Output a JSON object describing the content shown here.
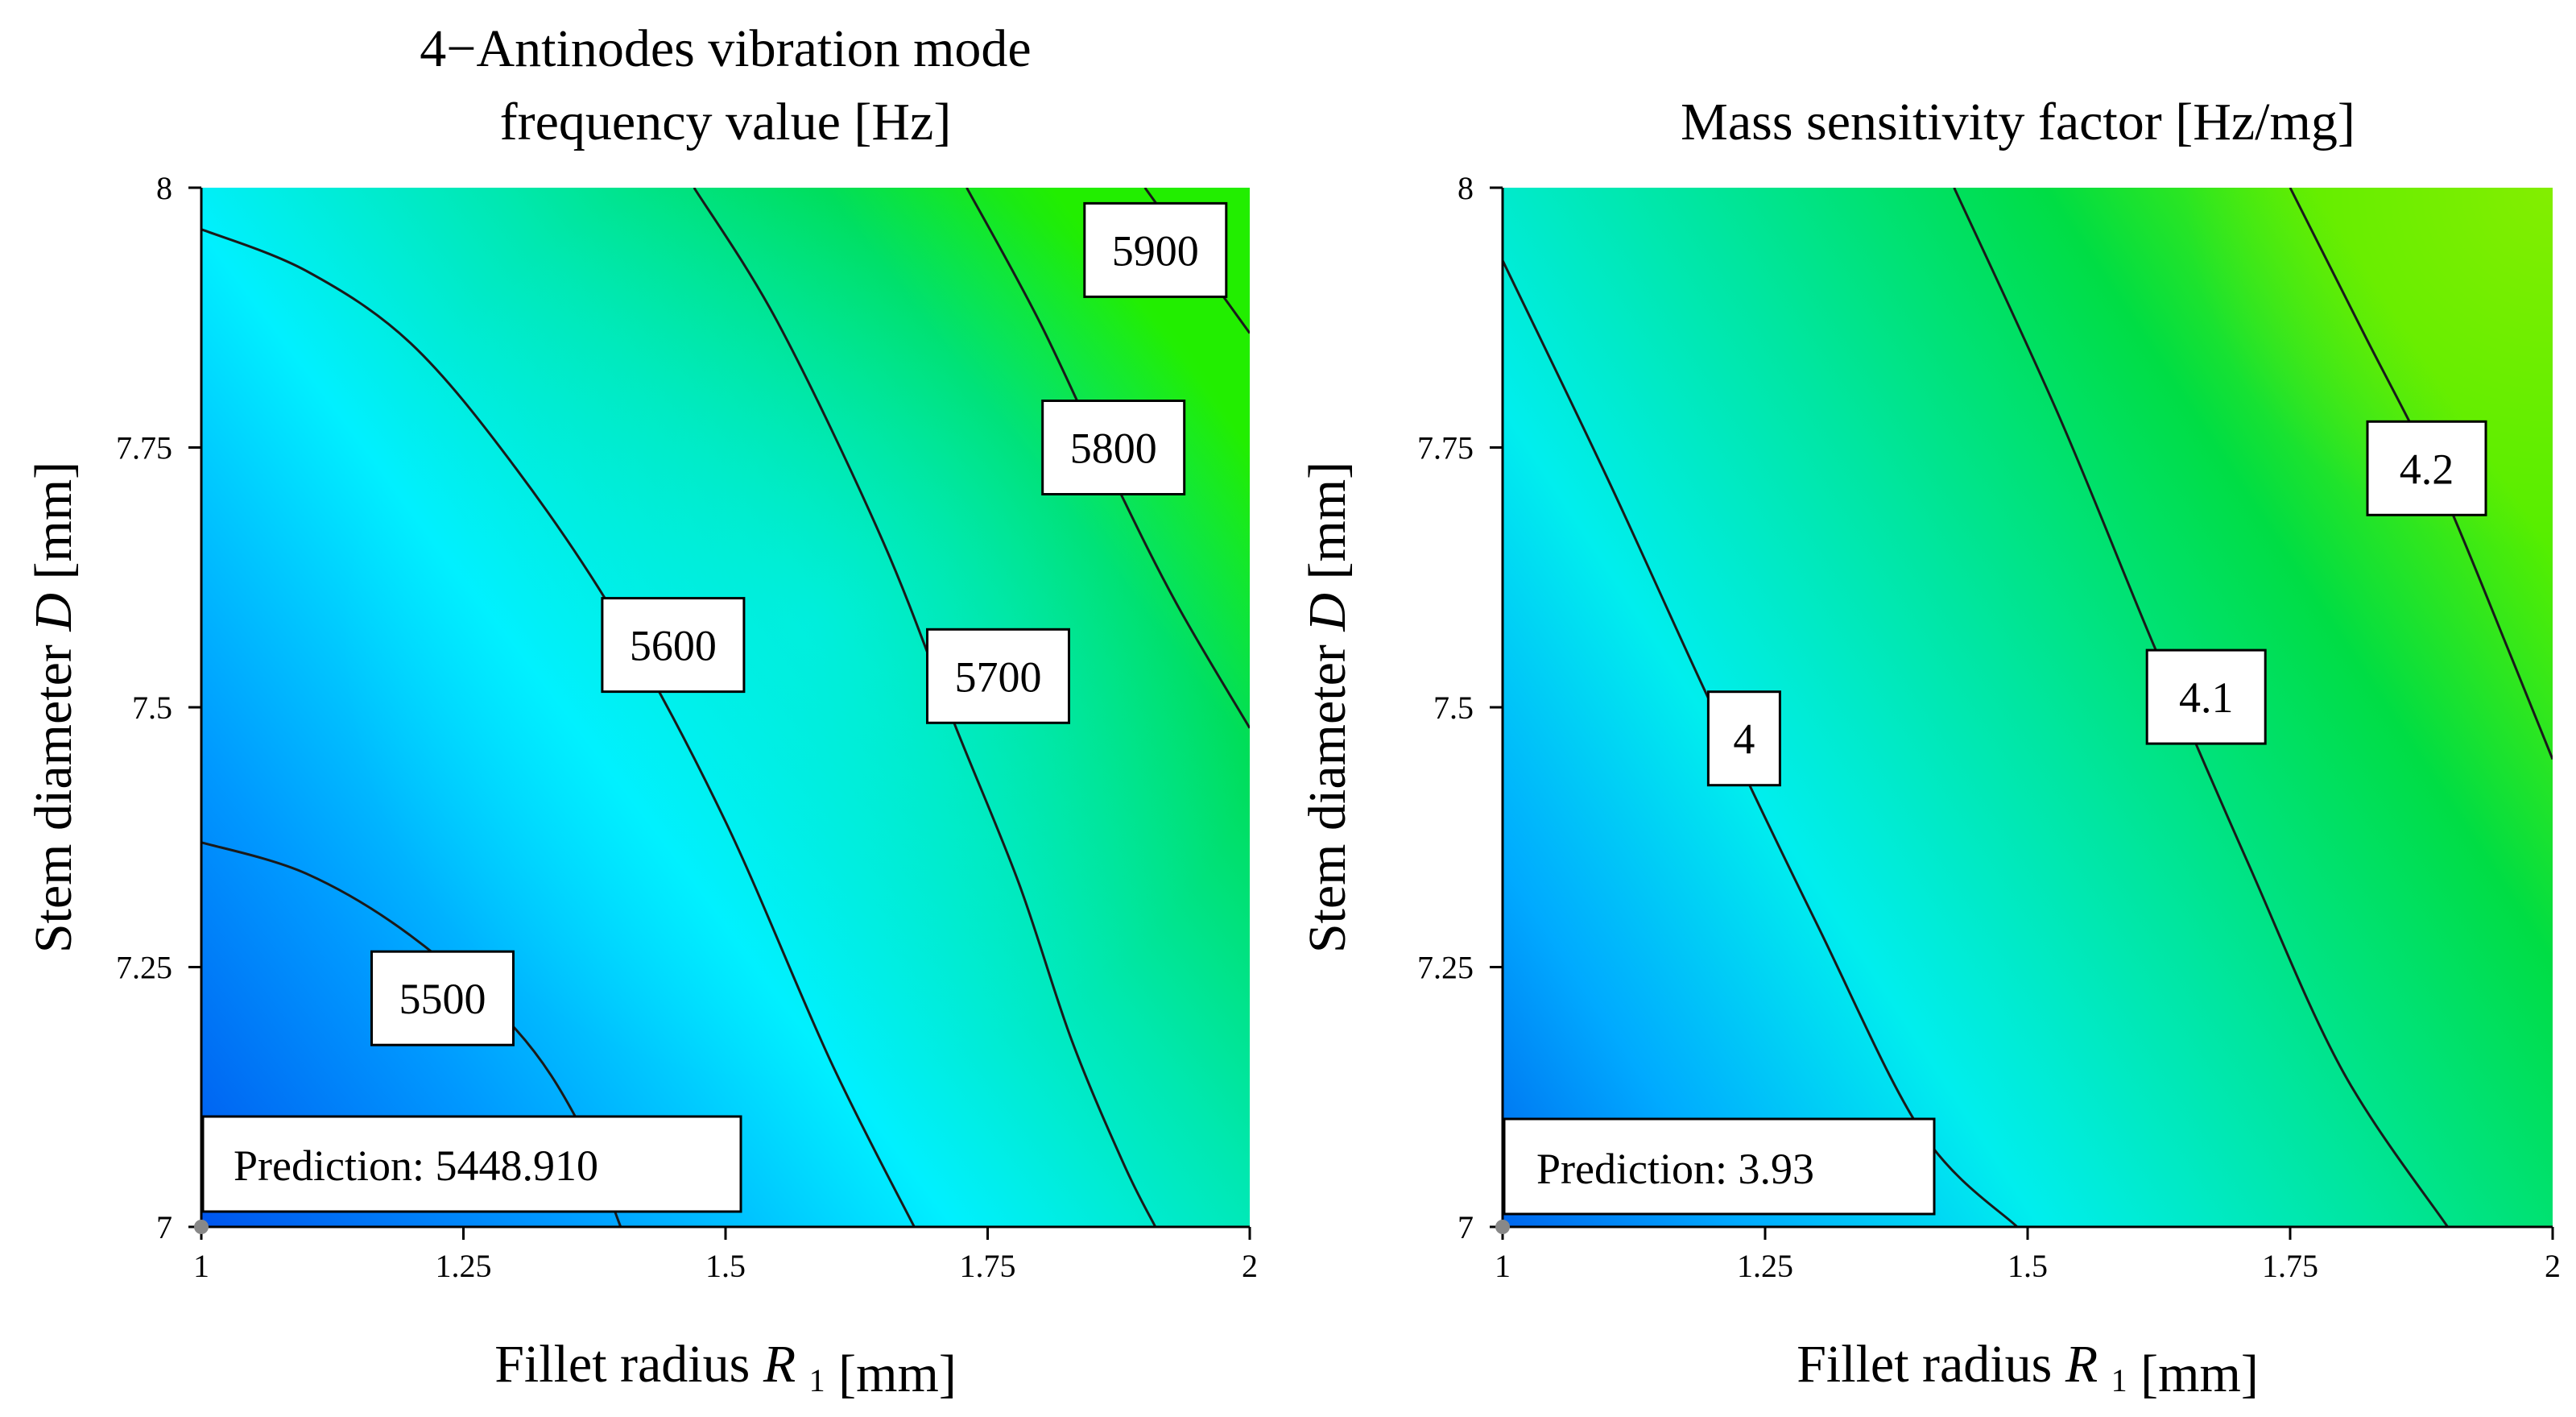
{
  "chart_data": [
    {
      "type": "contour",
      "title_lines": [
        "4−Antinodes vibration mode",
        "frequency value [Hz]"
      ],
      "xlabel": "Fillet radius",
      "xlabel_symbol": "R",
      "xlabel_subscript": "1",
      "xlabel_unit": "[mm]",
      "ylabel": "Stem diameter",
      "ylabel_symbol": "D",
      "ylabel_unit": "[mm]",
      "xlim": [
        1,
        2
      ],
      "ylim": [
        7,
        8
      ],
      "xticks": [
        1,
        1.25,
        1.5,
        1.75,
        2
      ],
      "xtick_labels": [
        "1",
        "1.25",
        "1.5",
        "1.75",
        "2"
      ],
      "yticks": [
        7,
        7.25,
        7.5,
        7.75,
        8
      ],
      "ytick_labels": [
        "7",
        "7.25",
        "7.5",
        "7.75",
        "8"
      ],
      "contour_levels": [
        {
          "value": 5500,
          "label": "5500",
          "points": [
            [
              1,
              7.37
            ],
            [
              1.1,
              7.34
            ],
            [
              1.2,
              7.28
            ],
            [
              1.3,
              7.19
            ],
            [
              1.36,
              7.1
            ],
            [
              1.4,
              7.0
            ]
          ],
          "label_at": [
            1.23,
            7.22
          ]
        },
        {
          "value": 5600,
          "label": "5600",
          "points": [
            [
              1,
              7.96
            ],
            [
              1.1,
              7.92
            ],
            [
              1.2,
              7.85
            ],
            [
              1.3,
              7.73
            ],
            [
              1.4,
              7.58
            ],
            [
              1.5,
              7.39
            ],
            [
              1.6,
              7.16
            ],
            [
              1.68,
              7.0
            ]
          ],
          "label_at": [
            1.45,
            7.56
          ]
        },
        {
          "value": 5700,
          "label": "5700",
          "points": [
            [
              1.47,
              8.0
            ],
            [
              1.55,
              7.87
            ],
            [
              1.65,
              7.66
            ],
            [
              1.72,
              7.48
            ],
            [
              1.78,
              7.33
            ],
            [
              1.83,
              7.18
            ],
            [
              1.88,
              7.06
            ],
            [
              1.91,
              7.0
            ]
          ],
          "label_at": [
            1.76,
            7.53
          ]
        },
        {
          "value": 5800,
          "label": "5800",
          "points": [
            [
              1.73,
              8.0
            ],
            [
              1.8,
              7.87
            ],
            [
              1.87,
              7.72
            ],
            [
              1.93,
              7.6
            ],
            [
              2.0,
              7.48
            ]
          ],
          "label_at": [
            1.87,
            7.75
          ]
        },
        {
          "value": 5900,
          "label": "5900",
          "points": [
            [
              1.9,
              8.0
            ],
            [
              1.95,
              7.93
            ],
            [
              2.0,
              7.86
            ]
          ],
          "label_at": [
            1.91,
            7.94
          ]
        }
      ],
      "prediction_text": "Prediction: 5448.910",
      "prediction_point": [
        1,
        7
      ],
      "colormap_low": "#0066ee",
      "colormap_mid": "#00eeff",
      "colormap_high": "#22ee00"
    },
    {
      "type": "contour",
      "title_lines": [
        "Mass sensitivity factor [Hz/mg]"
      ],
      "xlabel": "Fillet radius",
      "xlabel_symbol": "R",
      "xlabel_subscript": "1",
      "xlabel_unit": "[mm]",
      "ylabel": "Stem diameter",
      "ylabel_symbol": "D",
      "ylabel_unit": "[mm]",
      "xlim": [
        1,
        2
      ],
      "ylim": [
        7,
        8
      ],
      "xticks": [
        1,
        1.25,
        1.5,
        1.75,
        2
      ],
      "xtick_labels": [
        "1",
        "1.25",
        "1.5",
        "1.75",
        "2"
      ],
      "yticks": [
        7,
        7.25,
        7.5,
        7.75,
        8
      ],
      "ytick_labels": [
        "7",
        "7.25",
        "7.5",
        "7.75",
        "8"
      ],
      "contour_levels": [
        {
          "value": 4,
          "label": "4",
          "points": [
            [
              1.0,
              7.93
            ],
            [
              1.1,
              7.72
            ],
            [
              1.2,
              7.5
            ],
            [
              1.3,
              7.29
            ],
            [
              1.4,
              7.09
            ],
            [
              1.49,
              7.0
            ]
          ],
          "label_at": [
            1.23,
            7.47
          ]
        },
        {
          "value": 4.1,
          "label": "4.1",
          "points": [
            [
              1.43,
              8.0
            ],
            [
              1.53,
              7.78
            ],
            [
              1.62,
              7.56
            ],
            [
              1.71,
              7.35
            ],
            [
              1.8,
              7.15
            ],
            [
              1.9,
              7.0
            ]
          ],
          "label_at": [
            1.67,
            7.51
          ]
        },
        {
          "value": 4.2,
          "label": "4.2",
          "points": [
            [
              1.75,
              8.0
            ],
            [
              1.82,
              7.86
            ],
            [
              1.89,
              7.72
            ],
            [
              1.96,
              7.55
            ],
            [
              2.0,
              7.45
            ]
          ],
          "label_at": [
            1.88,
            7.73
          ]
        }
      ],
      "prediction_text": "Prediction: 3.93",
      "prediction_point": [
        1,
        7
      ],
      "colormap_low": "#0077ee",
      "colormap_mid": "#00eeee",
      "colormap_high": "#22ee00"
    }
  ]
}
